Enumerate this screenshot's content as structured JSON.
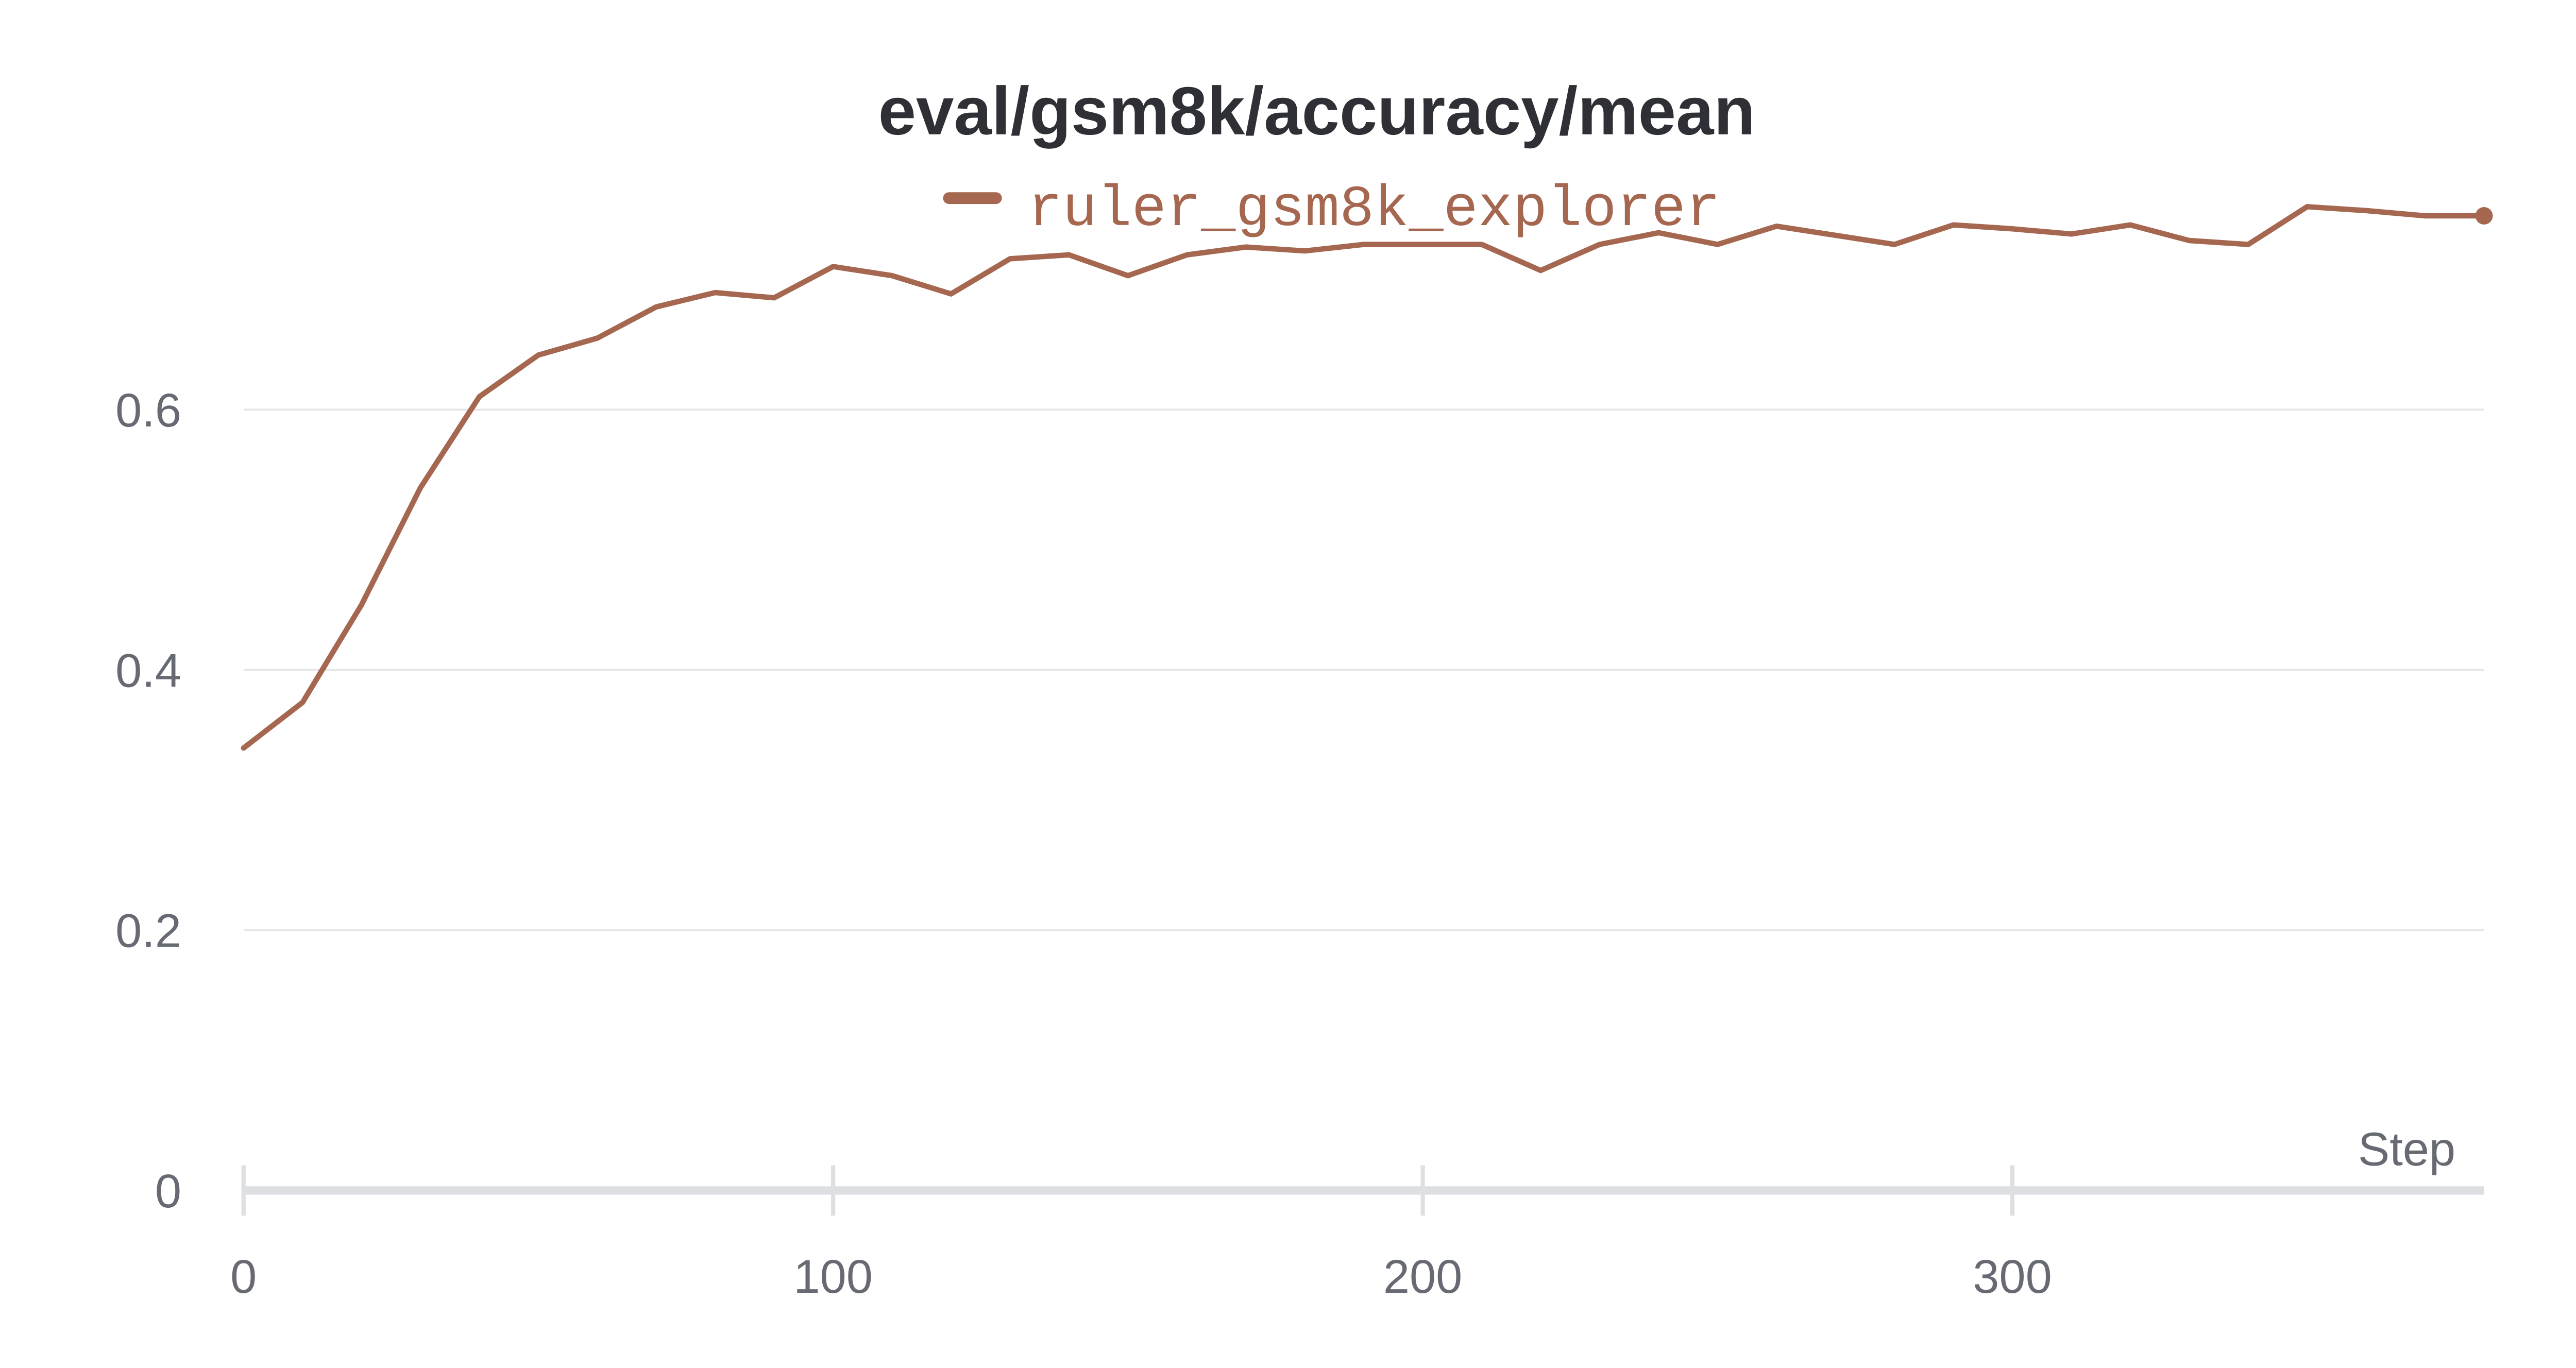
{
  "chart_data": {
    "type": "line",
    "title": "eval/gsm8k/accuracy/mean",
    "xlabel": "Step",
    "ylabel": "",
    "xlim": [
      0,
      380
    ],
    "ylim": [
      0,
      0.76
    ],
    "x_ticks": [
      0,
      100,
      200,
      300
    ],
    "x_tick_labels": [
      "0",
      "100",
      "200",
      "300"
    ],
    "y_ticks": [
      0,
      0.2,
      0.4,
      0.6
    ],
    "y_tick_labels": [
      "0",
      "0.2",
      "0.4",
      "0.6"
    ],
    "grid": true,
    "legend_position": "top-center",
    "series": [
      {
        "name": "ruler_gsm8k_explorer",
        "color": "#a5674f",
        "x": [
          0,
          10,
          20,
          30,
          40,
          50,
          60,
          70,
          80,
          90,
          100,
          110,
          120,
          130,
          140,
          150,
          160,
          170,
          180,
          190,
          200,
          210,
          220,
          230,
          240,
          250,
          260,
          270,
          280,
          290,
          300,
          310,
          320,
          330,
          340,
          350,
          360,
          370,
          380
        ],
        "y": [
          0.34,
          0.375,
          0.45,
          0.54,
          0.61,
          0.642,
          0.655,
          0.679,
          0.69,
          0.686,
          0.71,
          0.703,
          0.689,
          0.716,
          0.719,
          0.703,
          0.719,
          0.725,
          0.722,
          0.727,
          0.727,
          0.727,
          0.707,
          0.727,
          0.736,
          0.727,
          0.741,
          0.734,
          0.727,
          0.742,
          0.739,
          0.735,
          0.742,
          0.73,
          0.727,
          0.756,
          0.753,
          0.749,
          0.749
        ]
      }
    ]
  }
}
